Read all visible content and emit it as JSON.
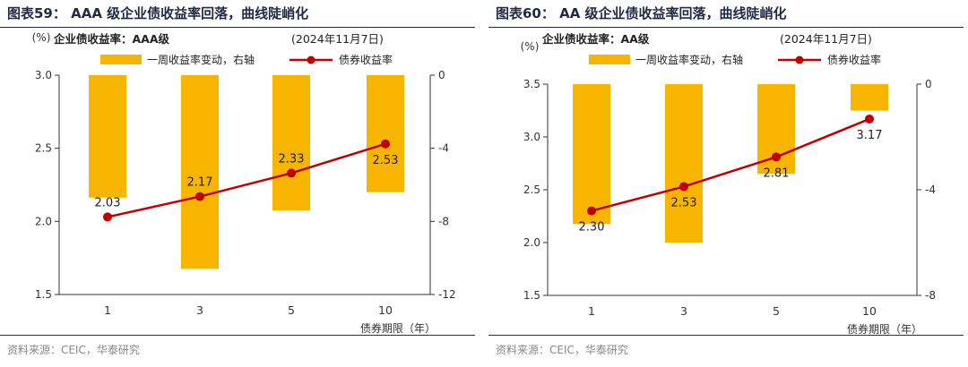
{
  "panels": [
    {
      "title": "图表59：  AAA 级企业债收益率回落，曲线陡峭化",
      "source": "资料来源：CEIC，华泰研究",
      "chart_data": {
        "type": "bar+line",
        "subtitle": "企业债收益率：AAA级",
        "date_note": "(2024年11月7日)",
        "left_axis_unit": "(%)",
        "xlabel": "债券期限（年）",
        "categories": [
          "1",
          "3",
          "5",
          "10"
        ],
        "left_ylim": [
          1.5,
          3.0
        ],
        "left_ticks": [
          "1.5",
          "2.0",
          "2.5",
          "3.0"
        ],
        "right_ylim": [
          -12,
          0
        ],
        "right_ticks": [
          "-12",
          "-8",
          "-4",
          "0"
        ],
        "legend_position": "top",
        "series": [
          {
            "name": "一周收益率变动，右轴",
            "kind": "bar",
            "axis": "right",
            "color": "#f7b500",
            "values": [
              -6.7,
              -10.6,
              -7.4,
              -6.4
            ]
          },
          {
            "name": "债券收益率",
            "kind": "line",
            "axis": "left",
            "color": "#c00000",
            "values": [
              2.03,
              2.17,
              2.33,
              2.53
            ],
            "labels": [
              "2.03",
              "2.17",
              "2.33",
              "2.53"
            ],
            "label_positions": [
              "above",
              "above",
              "above",
              "below"
            ]
          }
        ]
      }
    },
    {
      "title": "图表60：  AA 级企业债收益率回落，曲线陡峭化",
      "source": "资料来源：CEIC，华泰研究",
      "chart_data": {
        "type": "bar+line",
        "subtitle": "企业债收益率：AA级",
        "date_note": "(2024年11月7日)",
        "left_axis_unit": "(%)",
        "xlabel": "债券期限（年）",
        "categories": [
          "1",
          "3",
          "5",
          "10"
        ],
        "left_ylim": [
          1.5,
          3.5
        ],
        "left_ticks": [
          "1.5",
          "2.0",
          "2.5",
          "3.0",
          "3.5"
        ],
        "right_ylim": [
          -8,
          0
        ],
        "right_ticks": [
          "-8",
          "-4",
          "0"
        ],
        "legend_position": "top",
        "series": [
          {
            "name": "一周收益率变动，右轴",
            "kind": "bar",
            "axis": "right",
            "color": "#f7b500",
            "values": [
              -5.3,
              -6.0,
              -3.4,
              -1.0
            ]
          },
          {
            "name": "债券收益率",
            "kind": "line",
            "axis": "left",
            "color": "#c00000",
            "values": [
              2.3,
              2.53,
              2.81,
              3.17
            ],
            "labels": [
              "2.30",
              "2.53",
              "2.81",
              "3.17"
            ],
            "label_positions": [
              "below",
              "below",
              "below",
              "below"
            ]
          }
        ]
      }
    }
  ]
}
